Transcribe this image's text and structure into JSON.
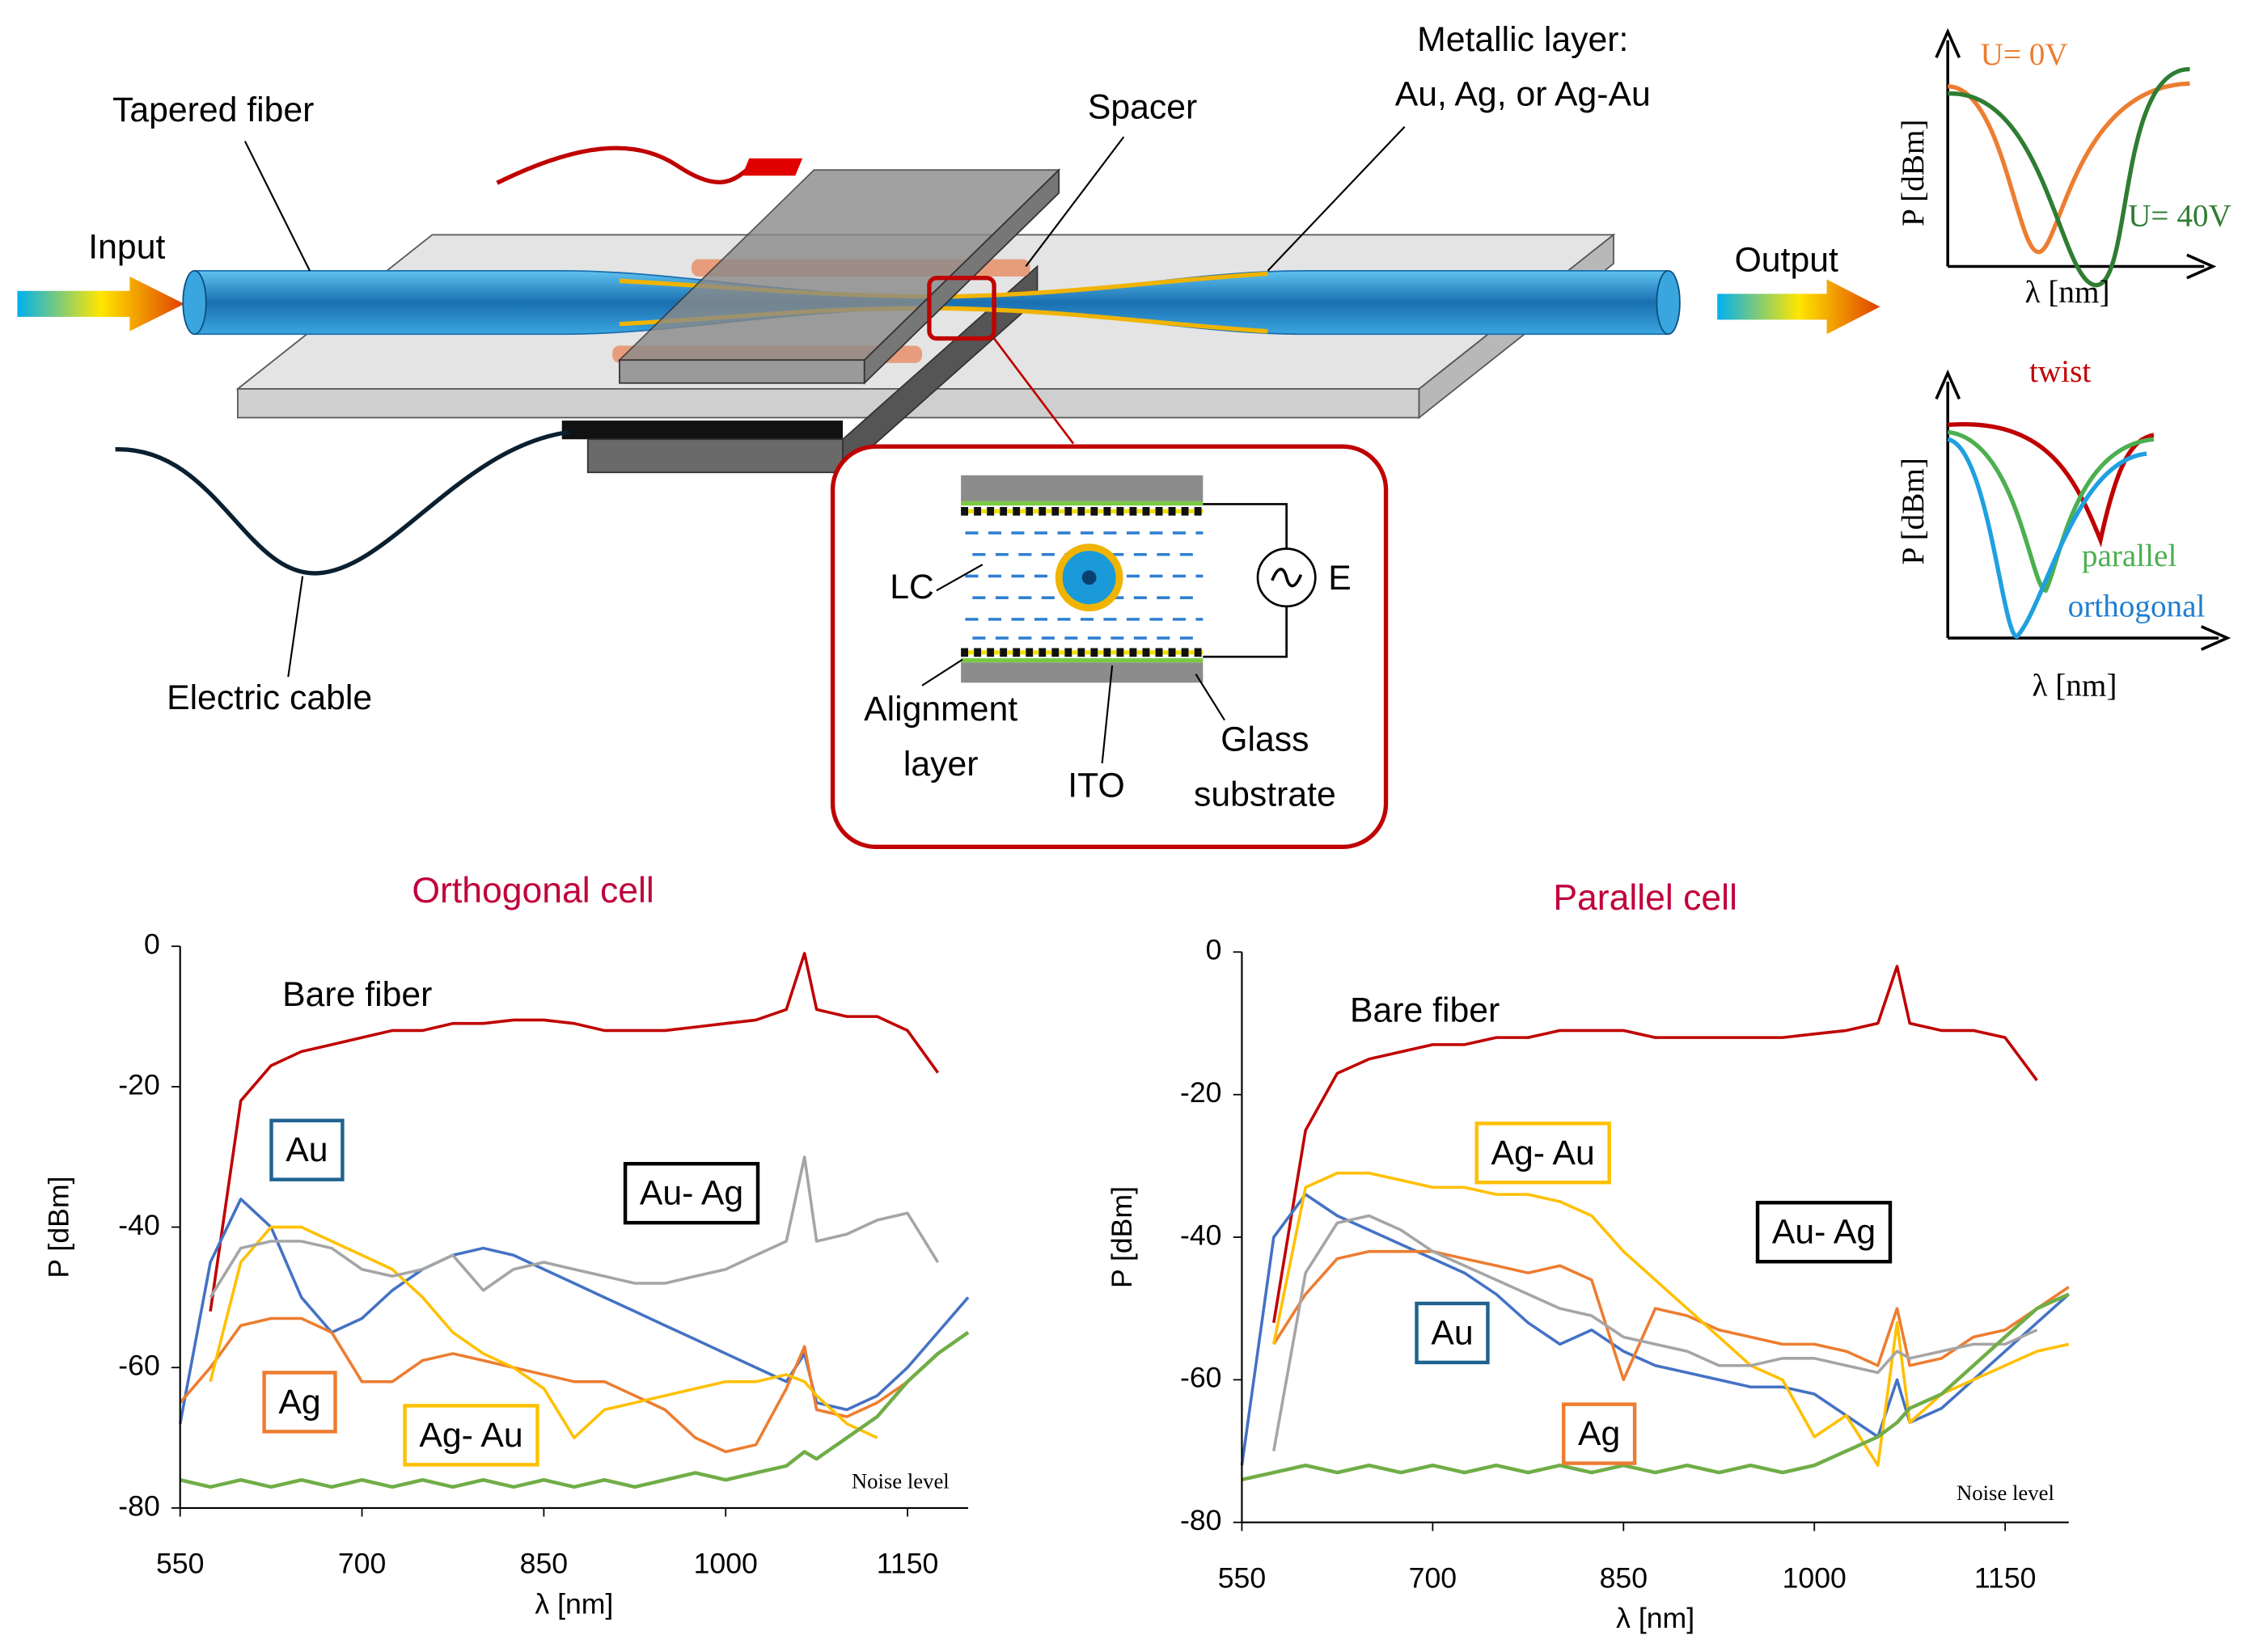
{
  "diagram": {
    "tapered_fiber": "Tapered fiber",
    "input": "Input",
    "output": "Output",
    "spacer": "Spacer",
    "metallic_1": "Metallic layer:",
    "metallic_2": "Au, Ag, or Ag-Au",
    "electric_cable": "Electric cable",
    "lc": "LC",
    "e": "E",
    "alignment_1": "Alignment",
    "alignment_2": "layer",
    "ito": "ITO",
    "glass_1": "Glass",
    "glass_2": "substrate"
  },
  "insets": [
    {
      "y_label": "P [dBm]",
      "x_label": "λ [nm]",
      "curves": [
        "U= 0V",
        "U= 40V"
      ]
    },
    {
      "y_label": "P [dBm]",
      "x_label": "λ [nm]",
      "curves": [
        "twist",
        "parallel",
        "orthogonal"
      ]
    }
  ],
  "chart_data": [
    {
      "type": "line",
      "title": "Orthogonal cell",
      "x_label": "λ [nm]",
      "y_label": "P [dBm]",
      "xlim": [
        550,
        1200
      ],
      "ylim": [
        -80,
        0
      ],
      "xticks": [
        550,
        700,
        850,
        1000,
        1150
      ],
      "yticks": [
        -80,
        -60,
        -40,
        -20,
        0
      ],
      "x": [
        550,
        575,
        600,
        625,
        650,
        675,
        700,
        725,
        750,
        775,
        800,
        825,
        850,
        875,
        900,
        925,
        950,
        975,
        1000,
        1025,
        1050,
        1065,
        1075,
        1100,
        1125,
        1150,
        1175,
        1200
      ],
      "series": [
        {
          "name": "Bare fiber",
          "color": "#c00000",
          "values": [
            null,
            -52,
            -22,
            -17,
            -15,
            -14,
            -13,
            -12,
            -12,
            -11,
            -11,
            -10.5,
            -10.5,
            -11,
            -12,
            -12,
            -12,
            -11.5,
            -11,
            -10.5,
            -9,
            -1,
            -9,
            -10,
            -10,
            -12,
            -18,
            null
          ]
        },
        {
          "name": "Au",
          "color": "#4472c4",
          "label_color": "#1f6391",
          "values": [
            -68,
            -45,
            -36,
            -40,
            -50,
            -55,
            -53,
            -49,
            -46,
            -44,
            -43,
            -44,
            -46,
            -48,
            -50,
            -52,
            -54,
            -56,
            -58,
            -60,
            -62,
            -58,
            -65,
            -66,
            -64,
            -60,
            -55,
            -50
          ]
        },
        {
          "name": "Ag",
          "color": "#ed7d31",
          "label_color": "#ed7d31",
          "values": [
            -65,
            -60,
            -54,
            -53,
            -53,
            -55,
            -62,
            -62,
            -59,
            -58,
            -59,
            -60,
            -61,
            -62,
            -62,
            -64,
            -66,
            -70,
            -72,
            -71,
            -63,
            -57,
            -66,
            -67,
            -65,
            -62,
            -58,
            -55
          ]
        },
        {
          "name": "Ag- Au",
          "color": "#ffc000",
          "label_color": "#ffc000",
          "values": [
            null,
            -62,
            -45,
            -40,
            -40,
            -42,
            -44,
            -46,
            -50,
            -55,
            -58,
            -60,
            -63,
            -70,
            -66,
            -65,
            -64,
            -63,
            -62,
            -62,
            -61,
            -62,
            -64,
            -68,
            -70,
            null,
            null,
            null
          ]
        },
        {
          "name": "Au- Ag",
          "color": "#a5a5a5",
          "label_color": "#000000",
          "values": [
            null,
            -50,
            -43,
            -42,
            -42,
            -43,
            -46,
            -47,
            -46,
            -44,
            -49,
            -46,
            -45,
            -46,
            -47,
            -48,
            -48,
            -47,
            -46,
            -44,
            -42,
            -30,
            -42,
            -41,
            -39,
            -38,
            -45,
            null
          ]
        },
        {
          "name": "Noise level",
          "color": "#70ad47",
          "values": [
            -76,
            -77,
            -76,
            -77,
            -76,
            -77,
            -76,
            -77,
            -76,
            -77,
            -76,
            -77,
            -76,
            -77,
            -76,
            -77,
            -76,
            -75,
            -76,
            -75,
            -74,
            -72,
            -73,
            -70,
            -67,
            -62,
            -58,
            -55
          ]
        }
      ]
    },
    {
      "type": "line",
      "title": "Parallel cell",
      "x_label": "λ [nm]",
      "y_label": "P [dBm]",
      "xlim": [
        550,
        1200
      ],
      "ylim": [
        -80,
        0
      ],
      "xticks": [
        550,
        700,
        850,
        1000,
        1150
      ],
      "yticks": [
        -80,
        -60,
        -40,
        -20,
        0
      ],
      "x": [
        550,
        575,
        600,
        625,
        650,
        675,
        700,
        725,
        750,
        775,
        800,
        825,
        850,
        875,
        900,
        925,
        950,
        975,
        1000,
        1025,
        1050,
        1065,
        1075,
        1100,
        1125,
        1150,
        1175,
        1200
      ],
      "series": [
        {
          "name": "Bare fiber",
          "color": "#c00000",
          "values": [
            null,
            -52,
            -25,
            -17,
            -15,
            -14,
            -13,
            -13,
            -12,
            -12,
            -11,
            -11,
            -11,
            -12,
            -12,
            -12,
            -12,
            -12,
            -11.5,
            -11,
            -10,
            -2,
            -10,
            -11,
            -11,
            -12,
            -18,
            null
          ]
        },
        {
          "name": "Au",
          "color": "#4472c4",
          "label_color": "#1f6391",
          "values": [
            -72,
            -40,
            -34,
            -37,
            -39,
            -41,
            -43,
            -45,
            -48,
            -52,
            -55,
            -53,
            -56,
            -58,
            -59,
            -60,
            -61,
            -61,
            -62,
            -65,
            -68,
            -60,
            -66,
            -64,
            -60,
            -56,
            -52,
            -48
          ]
        },
        {
          "name": "Ag",
          "color": "#ed7d31",
          "label_color": "#ed7d31",
          "values": [
            null,
            -55,
            -48,
            -43,
            -42,
            -42,
            -42,
            -43,
            -44,
            -45,
            -44,
            -46,
            -60,
            -50,
            -51,
            -53,
            -54,
            -55,
            -55,
            -56,
            -58,
            -50,
            -58,
            -57,
            -54,
            -53,
            -50,
            -47
          ]
        },
        {
          "name": "Ag- Au",
          "color": "#ffc000",
          "label_color": "#ffc000",
          "values": [
            null,
            -55,
            -33,
            -31,
            -31,
            -32,
            -33,
            -33,
            -34,
            -34,
            -35,
            -37,
            -42,
            -46,
            -50,
            -54,
            -58,
            -60,
            -68,
            -65,
            -72,
            -52,
            -66,
            -62,
            -60,
            -58,
            -56,
            -55
          ]
        },
        {
          "name": "Au- Ag",
          "color": "#a5a5a5",
          "label_color": "#000000",
          "values": [
            null,
            -70,
            -45,
            -38,
            -37,
            -39,
            -42,
            -44,
            -46,
            -48,
            -50,
            -51,
            -54,
            -55,
            -56,
            -58,
            -58,
            -57,
            -57,
            -58,
            -59,
            -56,
            -57,
            -56,
            -55,
            -55,
            -53,
            null
          ]
        },
        {
          "name": "Noise level",
          "color": "#70ad47",
          "values": [
            -74,
            -73,
            -72,
            -73,
            -72,
            -73,
            -72,
            -73,
            -72,
            -73,
            -72,
            -73,
            -72,
            -73,
            -72,
            -73,
            -72,
            -73,
            -72,
            -70,
            -68,
            -66,
            -64,
            -62,
            -58,
            -54,
            -50,
            -48
          ]
        }
      ]
    }
  ]
}
